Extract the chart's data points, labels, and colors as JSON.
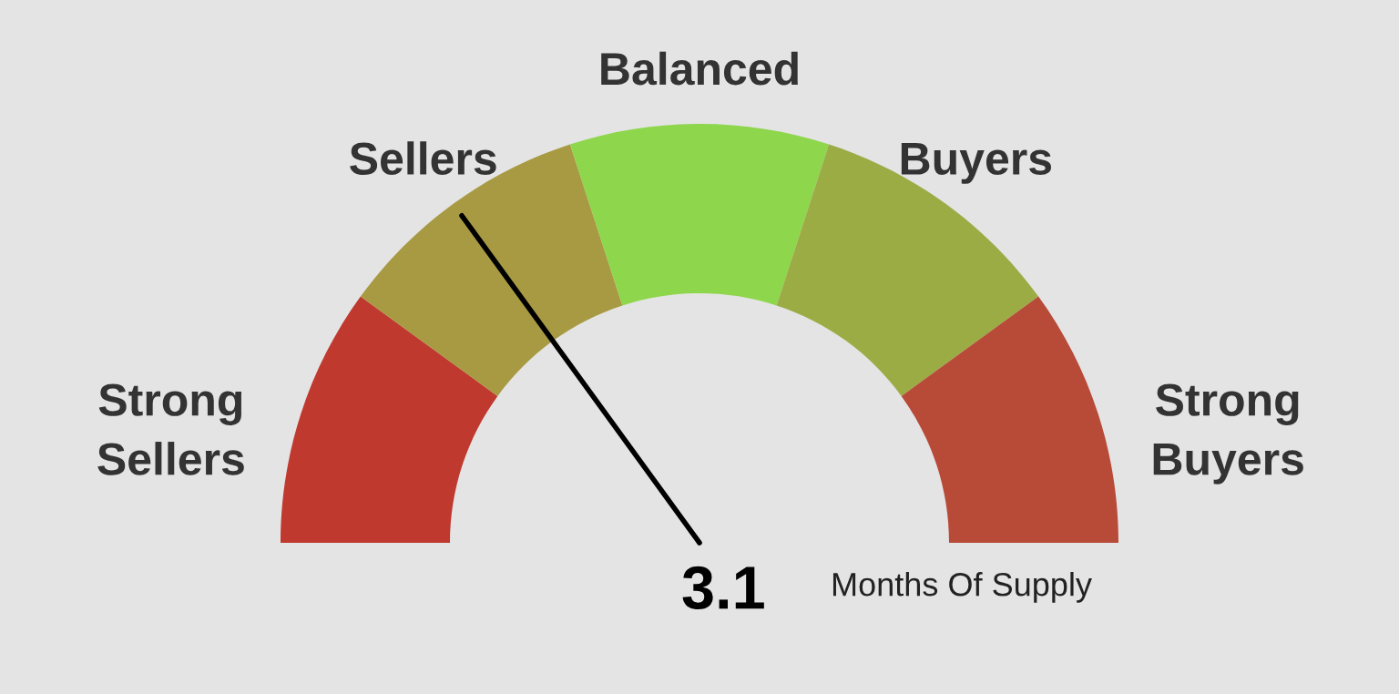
{
  "chart_data": {
    "type": "donut",
    "categories": [
      "Strong\nSellers",
      "Sellers",
      "Balanced",
      "Buyers",
      "Strong\nBuyers"
    ],
    "values": [
      20,
      20,
      20,
      20,
      20
    ],
    "colors": [
      "#c0392f",
      "#a89a42",
      "#8ed64c",
      "#9cac45",
      "#b84a38"
    ],
    "needle": "Sellers",
    "annotations": [
      "3.1",
      "Months Of Supply"
    ]
  }
}
